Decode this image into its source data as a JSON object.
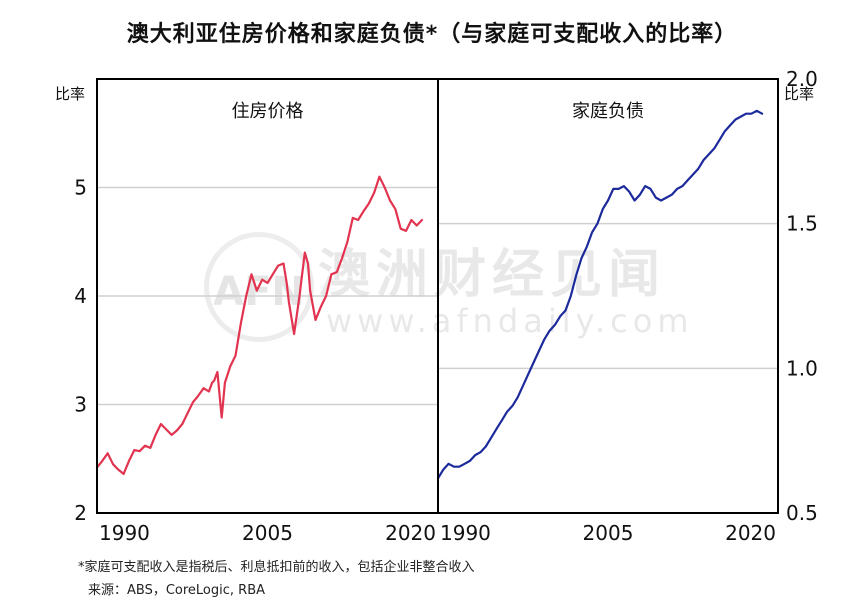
{
  "title": "澳大利亚住房价格和家庭负债*（与家庭可支配收入的比率）",
  "footnote": "*家庭可支配收入是指税后、利息抵扣前的收入，包括企业非整合收入",
  "source": "来源：ABS，CoreLogic, RBA",
  "watermark": {
    "logo_text": "AFN",
    "name": "澳洲财经见闻",
    "url": "www.afndaily.com"
  },
  "colors": {
    "housing": "#e2334f",
    "debt": "#1c2a9c",
    "grid": "#d0d0d0",
    "frame": "#000000"
  },
  "chart_data": [
    {
      "type": "line",
      "title": "住房价格",
      "ylabel": "比率",
      "axis_side": "left",
      "xlim": [
        1989,
        2021
      ],
      "ylim": [
        2,
        6
      ],
      "yticks": [
        2,
        3,
        4,
        5
      ],
      "xticks": [
        1990,
        2005,
        2020
      ],
      "grid": true,
      "series": [
        {
          "color": "#e2334f",
          "x": [
            1989.0,
            1989.5,
            1990.0,
            1990.5,
            1991.0,
            1991.5,
            1992.0,
            1992.5,
            1993.0,
            1993.5,
            1994.0,
            1994.5,
            1995.0,
            1995.5,
            1996.0,
            1996.5,
            1997.0,
            1997.5,
            1998.0,
            1998.5,
            1999.0,
            1999.5,
            1999.8,
            2000.0,
            2000.3,
            2000.7,
            2001.0,
            2001.5,
            2002.0,
            2002.5,
            2003.0,
            2003.5,
            2004.0,
            2004.5,
            2005.0,
            2005.5,
            2006.0,
            2006.5,
            2006.8,
            2007.0,
            2007.5,
            2008.0,
            2008.5,
            2008.8,
            2009.0,
            2009.5,
            2010.0,
            2010.5,
            2011.0,
            2011.5,
            2012.0,
            2012.5,
            2013.0,
            2013.5,
            2014.0,
            2014.5,
            2015.0,
            2015.5,
            2016.0,
            2016.5,
            2017.0,
            2017.5,
            2018.0,
            2018.5,
            2019.0,
            2019.5
          ],
          "y": [
            2.42,
            2.48,
            2.55,
            2.45,
            2.4,
            2.36,
            2.48,
            2.58,
            2.57,
            2.62,
            2.6,
            2.72,
            2.82,
            2.77,
            2.72,
            2.76,
            2.82,
            2.92,
            3.02,
            3.08,
            3.15,
            3.12,
            3.2,
            3.22,
            3.3,
            2.88,
            3.2,
            3.35,
            3.45,
            3.75,
            4.0,
            4.2,
            4.05,
            4.15,
            4.12,
            4.2,
            4.28,
            4.3,
            4.12,
            3.95,
            3.65,
            4.0,
            4.4,
            4.3,
            4.05,
            3.78,
            3.9,
            4.0,
            4.2,
            4.22,
            4.35,
            4.5,
            4.72,
            4.7,
            4.78,
            4.85,
            4.95,
            5.1,
            5.0,
            4.88,
            4.8,
            4.62,
            4.6,
            4.7,
            4.65,
            4.7
          ]
        }
      ]
    },
    {
      "type": "line",
      "title": "家庭负债",
      "ylabel": "比率",
      "axis_side": "right",
      "xlim": [
        1989,
        2021
      ],
      "ylim": [
        0.5,
        2.0
      ],
      "yticks": [
        0.5,
        1.0,
        1.5,
        2.0
      ],
      "xticks": [
        1990,
        2005,
        2020
      ],
      "grid": true,
      "series": [
        {
          "color": "#1c2a9c",
          "x": [
            1989.0,
            1989.5,
            1990.0,
            1990.5,
            1991.0,
            1991.5,
            1992.0,
            1992.5,
            1993.0,
            1993.5,
            1994.0,
            1994.5,
            1995.0,
            1995.5,
            1996.0,
            1996.5,
            1997.0,
            1997.5,
            1998.0,
            1998.5,
            1999.0,
            1999.5,
            2000.0,
            2000.5,
            2001.0,
            2001.5,
            2002.0,
            2002.5,
            2003.0,
            2003.5,
            2004.0,
            2004.5,
            2005.0,
            2005.5,
            2006.0,
            2006.5,
            2007.0,
            2007.5,
            2008.0,
            2008.5,
            2009.0,
            2009.5,
            2010.0,
            2010.5,
            2011.0,
            2011.5,
            2012.0,
            2012.5,
            2013.0,
            2013.5,
            2014.0,
            2014.5,
            2015.0,
            2015.5,
            2016.0,
            2016.5,
            2017.0,
            2017.5,
            2018.0,
            2018.5,
            2019.0,
            2019.5
          ],
          "y": [
            0.62,
            0.65,
            0.67,
            0.66,
            0.66,
            0.67,
            0.68,
            0.7,
            0.71,
            0.73,
            0.76,
            0.79,
            0.82,
            0.85,
            0.87,
            0.9,
            0.94,
            0.98,
            1.02,
            1.06,
            1.1,
            1.13,
            1.15,
            1.18,
            1.2,
            1.25,
            1.32,
            1.38,
            1.42,
            1.47,
            1.5,
            1.55,
            1.58,
            1.62,
            1.62,
            1.63,
            1.61,
            1.58,
            1.6,
            1.63,
            1.62,
            1.59,
            1.58,
            1.59,
            1.6,
            1.62,
            1.63,
            1.65,
            1.67,
            1.69,
            1.72,
            1.74,
            1.76,
            1.79,
            1.82,
            1.84,
            1.86,
            1.87,
            1.88,
            1.88,
            1.89,
            1.88
          ]
        }
      ]
    }
  ]
}
